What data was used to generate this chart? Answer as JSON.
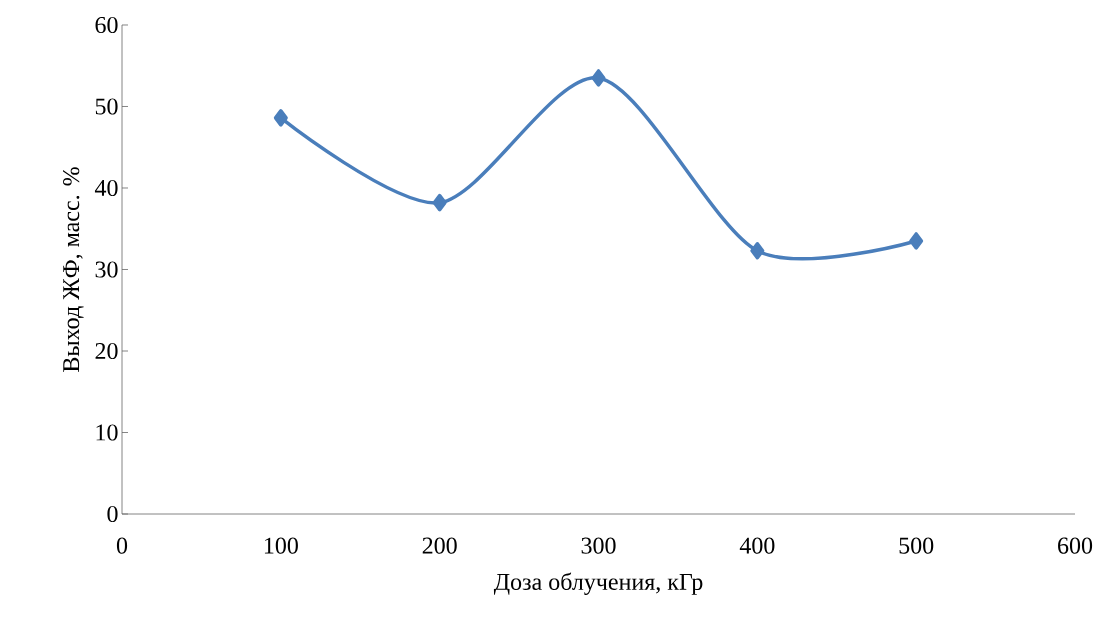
{
  "chart_data": {
    "type": "line",
    "xlabel": "Доза облучения, кГр",
    "ylabel": "Выход ЖФ, масс. %",
    "x": [
      100,
      200,
      300,
      400,
      500
    ],
    "series": [
      {
        "color": "#4a7ebb",
        "values": [
          48.6,
          38.2,
          53.5,
          32.3,
          33.5
        ]
      }
    ],
    "xlim": [
      0,
      600
    ],
    "xticks": [
      0,
      100,
      200,
      300,
      400,
      500,
      600
    ],
    "ylim": [
      0,
      60
    ],
    "yticks": [
      0,
      10,
      20,
      30,
      40,
      50,
      60
    ],
    "marker": "diamond",
    "line_style": "solid",
    "grid": false
  }
}
